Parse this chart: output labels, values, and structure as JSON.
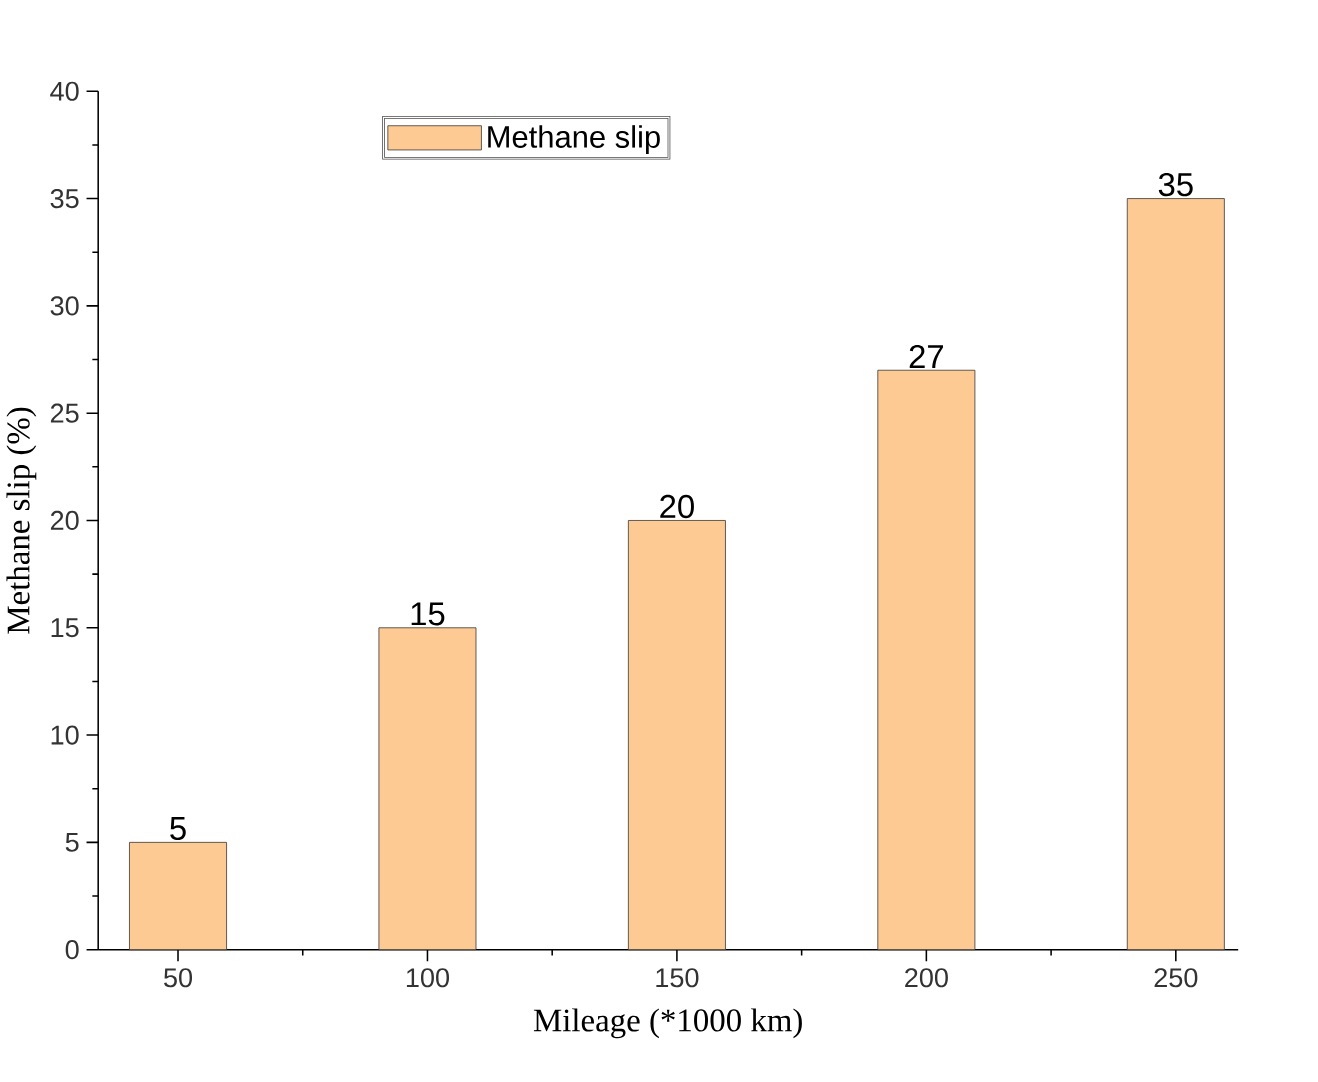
{
  "chart_data": {
    "type": "bar",
    "xlabel": "Mileage (*1000 km)",
    "ylabel": "Methane slip (%)",
    "categories": [
      "50",
      "100",
      "150",
      "200",
      "250"
    ],
    "series": [
      {
        "name": "Methane slip",
        "color": "#fdca93",
        "values": [
          5,
          15,
          20,
          27,
          35
        ]
      }
    ],
    "ylim": [
      0,
      40
    ],
    "yticks": [
      0,
      5,
      10,
      15,
      20,
      25,
      30,
      35,
      40
    ],
    "data_labels": true,
    "legend": "top left",
    "grid": false
  }
}
